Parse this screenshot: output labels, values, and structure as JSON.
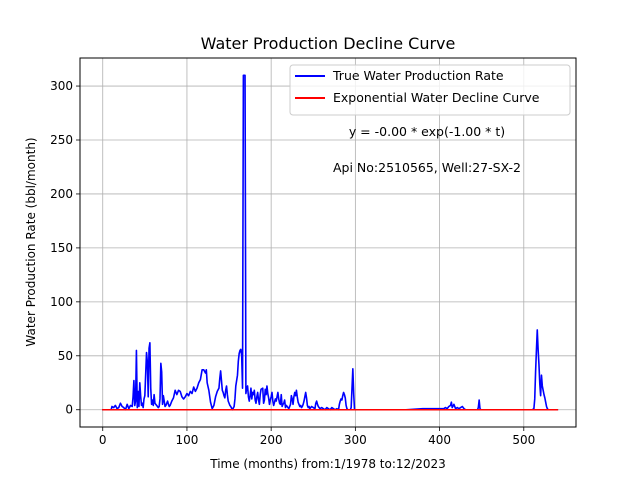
{
  "chart_data": {
    "type": "line",
    "title": "Water Production Decline Curve",
    "xlabel": "Time (months) from:1/1978 to:12/2023",
    "ylabel": "Water Production Rate (bbl/month)",
    "xlim": [
      -27,
      562
    ],
    "ylim": [
      -16,
      326
    ],
    "xticks": [
      0,
      100,
      200,
      300,
      400,
      500
    ],
    "yticks": [
      0,
      50,
      100,
      150,
      200,
      250,
      300
    ],
    "grid": true,
    "legend_position": "top-right",
    "annotations": [
      "y = -0.00 * exp(-1.00 * t)",
      "Api No:2510565, Well:27-SX-2"
    ],
    "series": [
      {
        "name": "True Water Production Rate",
        "color": "#0000ff",
        "points": [
          [
            0,
            0
          ],
          [
            10,
            0
          ],
          [
            11,
            3
          ],
          [
            13,
            2
          ],
          [
            15,
            4
          ],
          [
            17,
            1
          ],
          [
            19,
            2
          ],
          [
            21,
            6
          ],
          [
            23,
            3
          ],
          [
            25,
            2
          ],
          [
            27,
            0
          ],
          [
            29,
            5
          ],
          [
            31,
            1
          ],
          [
            33,
            4
          ],
          [
            35,
            3
          ],
          [
            36,
            12
          ],
          [
            37,
            27
          ],
          [
            38,
            4
          ],
          [
            39,
            8
          ],
          [
            40,
            55
          ],
          [
            41,
            2
          ],
          [
            42,
            17
          ],
          [
            43,
            3
          ],
          [
            44,
            25
          ],
          [
            45,
            13
          ],
          [
            46,
            4
          ],
          [
            47,
            6
          ],
          [
            48,
            2
          ],
          [
            49,
            10
          ],
          [
            50,
            13
          ],
          [
            51,
            33
          ],
          [
            52,
            53
          ],
          [
            53,
            44
          ],
          [
            54,
            12
          ],
          [
            55,
            57
          ],
          [
            56,
            62
          ],
          [
            57,
            20
          ],
          [
            58,
            5
          ],
          [
            59,
            9
          ],
          [
            60,
            4
          ],
          [
            61,
            14
          ],
          [
            62,
            6
          ],
          [
            63,
            5
          ],
          [
            64,
            4
          ],
          [
            65,
            3
          ],
          [
            66,
            2
          ],
          [
            67,
            3
          ],
          [
            68,
            10
          ],
          [
            69,
            43
          ],
          [
            70,
            35
          ],
          [
            71,
            5
          ],
          [
            72,
            13
          ],
          [
            73,
            8
          ],
          [
            74,
            3
          ],
          [
            75,
            4
          ],
          [
            76,
            6
          ],
          [
            77,
            8
          ],
          [
            78,
            5
          ],
          [
            79,
            3
          ],
          [
            80,
            4
          ],
          [
            82,
            8
          ],
          [
            84,
            11
          ],
          [
            86,
            18
          ],
          [
            88,
            14
          ],
          [
            90,
            18
          ],
          [
            92,
            17
          ],
          [
            94,
            12
          ],
          [
            96,
            10
          ],
          [
            98,
            12
          ],
          [
            100,
            15
          ],
          [
            102,
            13
          ],
          [
            104,
            17
          ],
          [
            106,
            15
          ],
          [
            108,
            21
          ],
          [
            110,
            17
          ],
          [
            112,
            20
          ],
          [
            114,
            25
          ],
          [
            116,
            28
          ],
          [
            118,
            37
          ],
          [
            120,
            37
          ],
          [
            122,
            34
          ],
          [
            123,
            37
          ],
          [
            124,
            25
          ],
          [
            126,
            18
          ],
          [
            128,
            7
          ],
          [
            130,
            1
          ],
          [
            132,
            4
          ],
          [
            134,
            12
          ],
          [
            136,
            17
          ],
          [
            138,
            20
          ],
          [
            139,
            29
          ],
          [
            140,
            36
          ],
          [
            141,
            27
          ],
          [
            142,
            18
          ],
          [
            143,
            16
          ],
          [
            144,
            13
          ],
          [
            145,
            11
          ],
          [
            146,
            18
          ],
          [
            147,
            22
          ],
          [
            148,
            14
          ],
          [
            149,
            8
          ],
          [
            150,
            6
          ],
          [
            151,
            4
          ],
          [
            152,
            3
          ],
          [
            154,
            0
          ],
          [
            156,
            3
          ],
          [
            157,
            10
          ],
          [
            158,
            22
          ],
          [
            160,
            32
          ],
          [
            161,
            45
          ],
          [
            162,
            52
          ],
          [
            163,
            55
          ],
          [
            164,
            56
          ],
          [
            165,
            50
          ],
          [
            166,
            20
          ],
          [
            167,
            310
          ],
          [
            168,
            310
          ],
          [
            169,
            310
          ],
          [
            170,
            15
          ],
          [
            171,
            20
          ],
          [
            172,
            22
          ],
          [
            173,
            12
          ],
          [
            174,
            8
          ],
          [
            175,
            13
          ],
          [
            176,
            20
          ],
          [
            177,
            10
          ],
          [
            178,
            16
          ],
          [
            179,
            14
          ],
          [
            180,
            18
          ],
          [
            181,
            9
          ],
          [
            182,
            6
          ],
          [
            183,
            12
          ],
          [
            184,
            16
          ],
          [
            185,
            9
          ],
          [
            186,
            5
          ],
          [
            187,
            14
          ],
          [
            188,
            19
          ],
          [
            190,
            20
          ],
          [
            191,
            6
          ],
          [
            192,
            9
          ],
          [
            193,
            19
          ],
          [
            194,
            14
          ],
          [
            195,
            22
          ],
          [
            196,
            15
          ],
          [
            197,
            11
          ],
          [
            198,
            5
          ],
          [
            199,
            9
          ],
          [
            200,
            12
          ],
          [
            201,
            16
          ],
          [
            202,
            8
          ],
          [
            203,
            4
          ],
          [
            204,
            7
          ],
          [
            205,
            10
          ],
          [
            206,
            8
          ],
          [
            207,
            12
          ],
          [
            208,
            16
          ],
          [
            209,
            10
          ],
          [
            210,
            6
          ],
          [
            211,
            5
          ],
          [
            212,
            14
          ],
          [
            213,
            3
          ],
          [
            214,
            5
          ],
          [
            215,
            6
          ],
          [
            216,
            9
          ],
          [
            217,
            2
          ],
          [
            218,
            4
          ],
          [
            219,
            3
          ],
          [
            220,
            2
          ],
          [
            221,
            1
          ],
          [
            222,
            3
          ],
          [
            223,
            5
          ],
          [
            224,
            13
          ],
          [
            225,
            10
          ],
          [
            226,
            5
          ],
          [
            227,
            12
          ],
          [
            228,
            16
          ],
          [
            229,
            13
          ],
          [
            230,
            18
          ],
          [
            231,
            12
          ],
          [
            232,
            7
          ],
          [
            233,
            5
          ],
          [
            234,
            3
          ],
          [
            235,
            4
          ],
          [
            236,
            2
          ],
          [
            237,
            3
          ],
          [
            238,
            5
          ],
          [
            239,
            8
          ],
          [
            240,
            12
          ],
          [
            241,
            16
          ],
          [
            242,
            11
          ],
          [
            243,
            4
          ],
          [
            244,
            2
          ],
          [
            245,
            3
          ],
          [
            246,
            1
          ],
          [
            248,
            3
          ],
          [
            250,
            2
          ],
          [
            252,
            1
          ],
          [
            253,
            6
          ],
          [
            254,
            8
          ],
          [
            255,
            5
          ],
          [
            256,
            3
          ],
          [
            257,
            2
          ],
          [
            258,
            1
          ],
          [
            260,
            2
          ],
          [
            262,
            1
          ],
          [
            264,
            0
          ],
          [
            266,
            2
          ],
          [
            268,
            1
          ],
          [
            270,
            0
          ],
          [
            272,
            2
          ],
          [
            274,
            1
          ],
          [
            276,
            0
          ],
          [
            278,
            1
          ],
          [
            280,
            0
          ],
          [
            281,
            5
          ],
          [
            282,
            8
          ],
          [
            283,
            10
          ],
          [
            284,
            9
          ],
          [
            285,
            13
          ],
          [
            286,
            16
          ],
          [
            287,
            14
          ],
          [
            288,
            11
          ],
          [
            289,
            4
          ],
          [
            290,
            1
          ],
          [
            291,
            0
          ],
          [
            292,
            0
          ],
          [
            293,
            0
          ],
          [
            294,
            0
          ],
          [
            295,
            2
          ],
          [
            296,
            20
          ],
          [
            297,
            38
          ],
          [
            298,
            15
          ],
          [
            299,
            0
          ],
          [
            300,
            0
          ],
          [
            330,
            0
          ],
          [
            360,
            0
          ],
          [
            380,
            1
          ],
          [
            400,
            1
          ],
          [
            405,
            1
          ],
          [
            407,
            2
          ],
          [
            409,
            1
          ],
          [
            411,
            3
          ],
          [
            413,
            4
          ],
          [
            414,
            7
          ],
          [
            415,
            2
          ],
          [
            417,
            5
          ],
          [
            419,
            1
          ],
          [
            421,
            2
          ],
          [
            423,
            1
          ],
          [
            425,
            2
          ],
          [
            427,
            3
          ],
          [
            429,
            1
          ],
          [
            431,
            0
          ],
          [
            440,
            0
          ],
          [
            445,
            0
          ],
          [
            446,
            2
          ],
          [
            447,
            9
          ],
          [
            448,
            1
          ],
          [
            449,
            0
          ],
          [
            480,
            0
          ],
          [
            510,
            0
          ],
          [
            512,
            1
          ],
          [
            513,
            10
          ],
          [
            514,
            35
          ],
          [
            515,
            55
          ],
          [
            516,
            74
          ],
          [
            517,
            56
          ],
          [
            518,
            42
          ],
          [
            519,
            24
          ],
          [
            520,
            13
          ],
          [
            521,
            32
          ],
          [
            522,
            22
          ],
          [
            523,
            18
          ],
          [
            524,
            14
          ],
          [
            525,
            11
          ],
          [
            526,
            7
          ],
          [
            527,
            3
          ],
          [
            528,
            1
          ],
          [
            529,
            0
          ],
          [
            540,
            0
          ]
        ]
      },
      {
        "name": "Exponential Water Decline Curve",
        "color": "#ff0000",
        "points": [
          [
            0,
            0
          ],
          [
            540,
            0
          ]
        ]
      }
    ]
  }
}
